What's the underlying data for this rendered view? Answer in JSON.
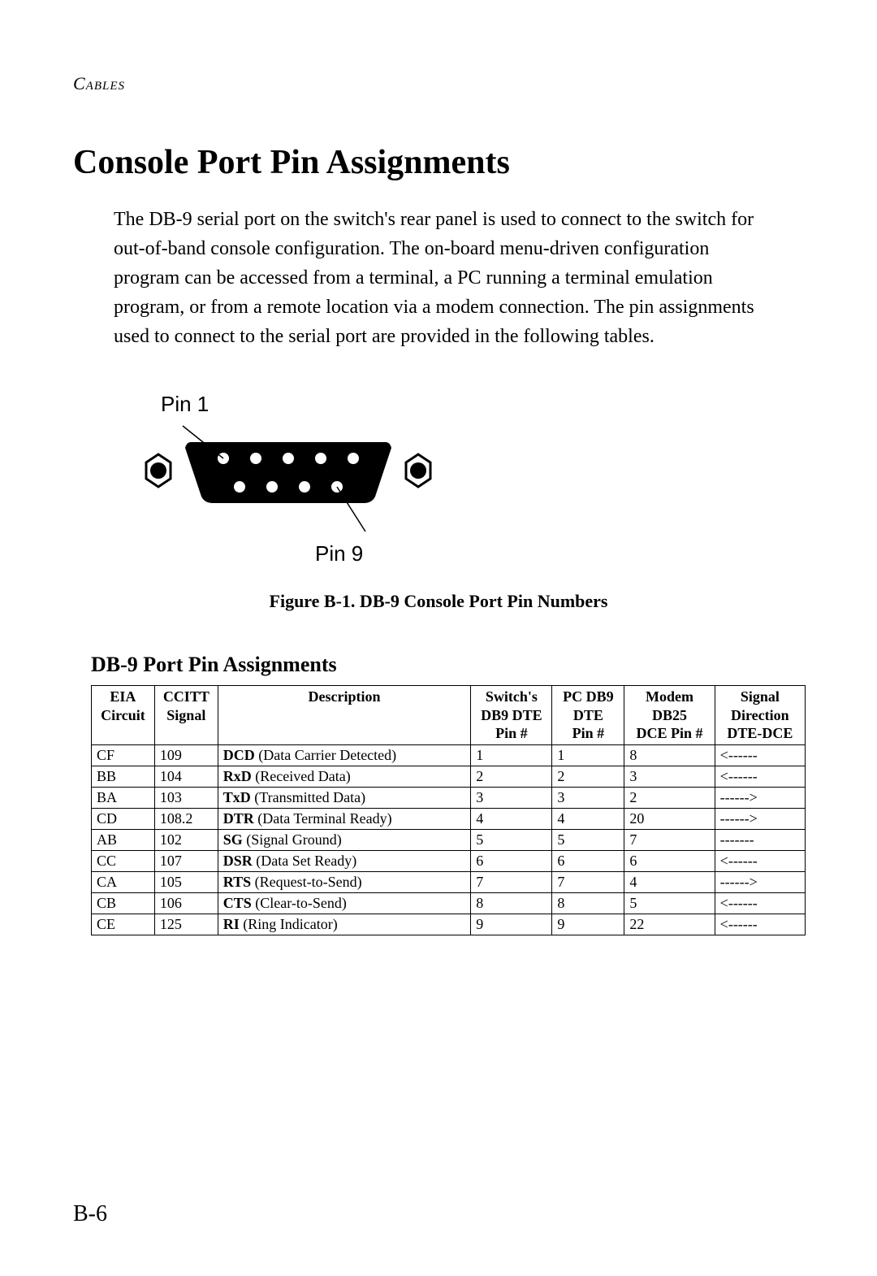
{
  "header": {
    "section": "Cables"
  },
  "title": "Console Port Pin Assignments",
  "intro": "The DB-9 serial port on the switch's rear panel is used to connect to the switch for out-of-band console configuration. The on-board menu-driven configuration program can be accessed from a terminal, a PC running a terminal emulation program, or from a remote location via a modem connection. The pin assignments used to connect to the serial port are provided in the following tables.",
  "figure": {
    "pin1_label": "Pin 1",
    "pin9_label": "Pin 9",
    "caption": "Figure B-1.  DB-9 Console Port Pin Numbers"
  },
  "subsection_title": "DB-9 Port Pin Assignments",
  "table": {
    "columns": [
      {
        "line1": "EIA",
        "line2": "Circuit",
        "line3": ""
      },
      {
        "line1": "CCITT",
        "line2": "Signal",
        "line3": ""
      },
      {
        "line1": "Description",
        "line2": "",
        "line3": ""
      },
      {
        "line1": "Switch's",
        "line2": "DB9 DTE",
        "line3": "Pin #"
      },
      {
        "line1": "PC DB9",
        "line2": "DTE",
        "line3": "Pin #"
      },
      {
        "line1": "Modem",
        "line2": "DB25",
        "line3": "DCE Pin #"
      },
      {
        "line1": "Signal",
        "line2": "Direction",
        "line3": "DTE-DCE"
      }
    ],
    "col_widths": [
      "70px",
      "70px",
      "280px",
      "90px",
      "80px",
      "100px",
      "100px"
    ],
    "rows": [
      {
        "eia": "CF",
        "ccitt": "109",
        "abbr": "DCD",
        "desc": " (Data Carrier Detected)",
        "sw": "1",
        "pc": "1",
        "modem": "8",
        "dir": "<------"
      },
      {
        "eia": "BB",
        "ccitt": "104",
        "abbr": "RxD",
        "desc": " (Received Data)",
        "sw": "2",
        "pc": "2",
        "modem": "3",
        "dir": "<------"
      },
      {
        "eia": "BA",
        "ccitt": "103",
        "abbr": "TxD",
        "desc": " (Transmitted Data)",
        "sw": "3",
        "pc": "3",
        "modem": "2",
        "dir": "------>"
      },
      {
        "eia": "CD",
        "ccitt": "108.2",
        "abbr": "DTR",
        "desc": " (Data Terminal Ready)",
        "sw": "4",
        "pc": "4",
        "modem": "20",
        "dir": "------>"
      },
      {
        "eia": "AB",
        "ccitt": "102",
        "abbr": "SG",
        "desc": " (Signal Ground)",
        "sw": "5",
        "pc": "5",
        "modem": "7",
        "dir": "-------"
      },
      {
        "eia": "CC",
        "ccitt": "107",
        "abbr": "DSR",
        "desc": " (Data Set Ready)",
        "sw": "6",
        "pc": "6",
        "modem": "6",
        "dir": "<------"
      },
      {
        "eia": "CA",
        "ccitt": "105",
        "abbr": "RTS",
        "desc": " (Request-to-Send)",
        "sw": "7",
        "pc": "7",
        "modem": "4",
        "dir": "------>"
      },
      {
        "eia": "CB",
        "ccitt": "106",
        "abbr": "CTS",
        "desc": " (Clear-to-Send)",
        "sw": "8",
        "pc": "8",
        "modem": "5",
        "dir": "<------"
      },
      {
        "eia": "CE",
        "ccitt": "125",
        "abbr": "RI",
        "desc": " (Ring Indicator)",
        "sw": "9",
        "pc": "9",
        "modem": "22",
        "dir": "<------"
      }
    ]
  },
  "page_number": "B-6",
  "diagram": {
    "shell_fill": "#000000",
    "pin_fill": "#ffffff",
    "hex_stroke": "#000000",
    "line_stroke": "#000000"
  }
}
